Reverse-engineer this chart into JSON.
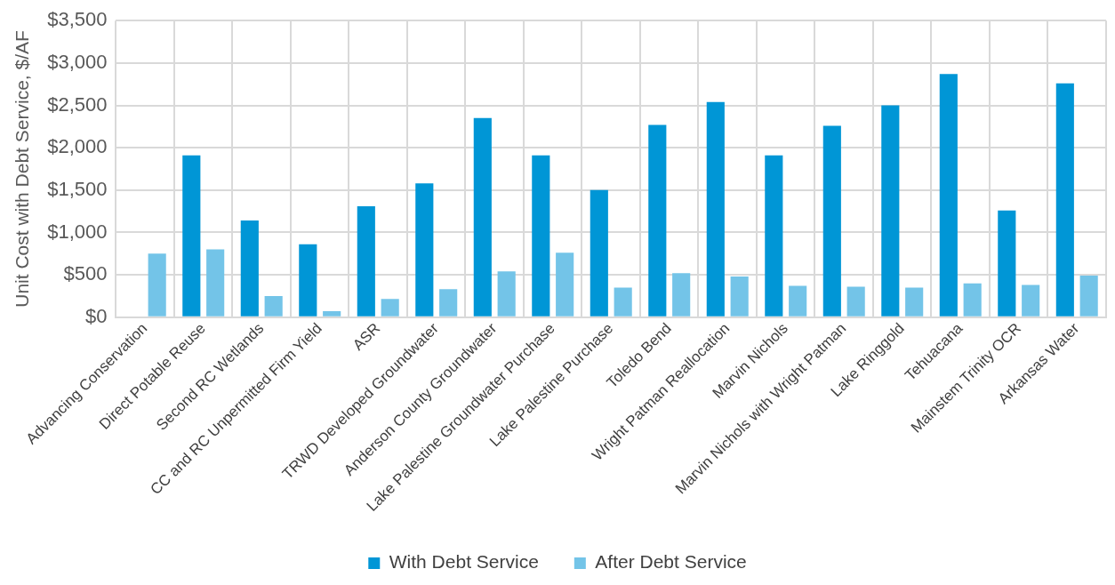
{
  "chart_data": {
    "type": "bar",
    "ylabel": "Unit Cost with Debt Service, $/AF",
    "categories": [
      "Advancing Conservation",
      "Direct Potable Reuse",
      "Second RC Wetlands",
      "CC and RC Unpermitted Firm Yield",
      "ASR",
      "TRWD Developed Groundwater",
      "Anderson County Groundwater",
      "Lake Palestine Groundwater Purchase",
      "Lake Palestine Purchase",
      "Toledo Bend",
      "Wright Patman Reallocation",
      "Marvin Nichols",
      "Marvin Nichols with Wright Patman",
      "Lake Ringgold",
      "Tehuacana",
      "Mainstem Trinity OCR",
      "Arkansas Water"
    ],
    "series": [
      {
        "name": "With Debt Service",
        "color": "#0096d6",
        "values": [
          null,
          1910,
          1140,
          860,
          1310,
          1580,
          2350,
          1910,
          1500,
          2270,
          2540,
          1910,
          2260,
          2500,
          2870,
          1260,
          2760
        ]
      },
      {
        "name": "After Debt Service",
        "color": "#73c4e8",
        "values": [
          750,
          800,
          250,
          70,
          215,
          330,
          540,
          760,
          350,
          520,
          480,
          370,
          360,
          350,
          400,
          380,
          490
        ]
      }
    ],
    "ylim": [
      0,
      3500
    ],
    "yticks": [
      {
        "value": 0,
        "label": "$0"
      },
      {
        "value": 500,
        "label": "$500"
      },
      {
        "value": 1000,
        "label": "$1,000"
      },
      {
        "value": 1500,
        "label": "$1,500"
      },
      {
        "value": 2000,
        "label": "$2,000"
      },
      {
        "value": 2500,
        "label": "$2,500"
      },
      {
        "value": 3000,
        "label": "$3,000"
      },
      {
        "value": 3500,
        "label": "$3,500"
      }
    ],
    "grid": true,
    "legend": "bottom"
  }
}
